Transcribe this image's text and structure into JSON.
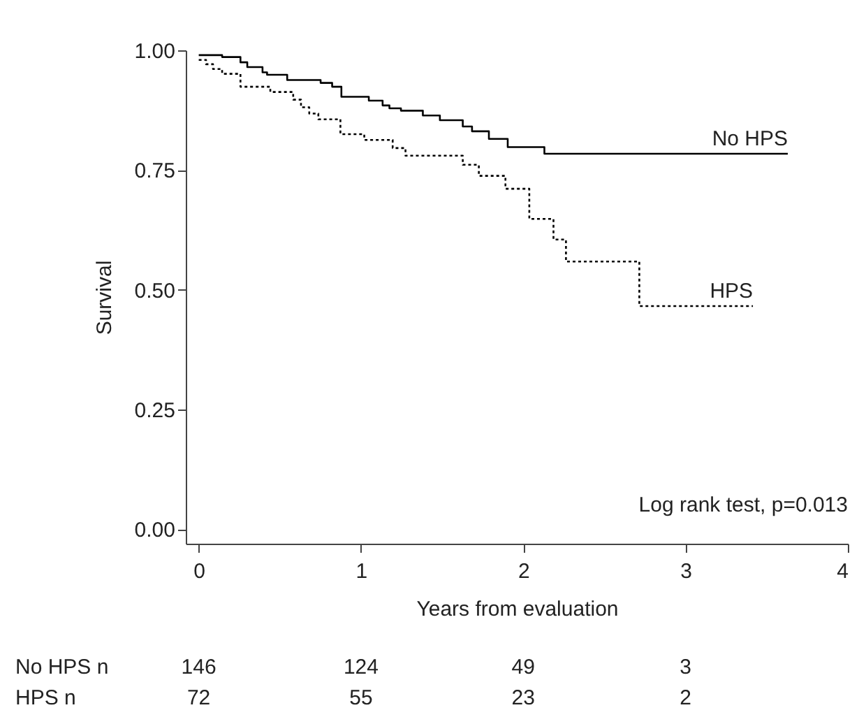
{
  "chart_data": {
    "type": "step",
    "xlabel": "Years from evaluation",
    "ylabel": "Survival",
    "xlim": [
      -0.08,
      4
    ],
    "xticks": [
      0,
      1,
      2,
      3,
      4
    ],
    "ylim": [
      -0.03,
      1
    ],
    "yticks": [
      {
        "value": 0,
        "label": "0.00"
      },
      {
        "value": 0.25,
        "label": "0.25"
      },
      {
        "value": 0.5,
        "label": "0.50"
      },
      {
        "value": 0.75,
        "label": "0.75"
      },
      {
        "value": 1,
        "label": "1.00"
      }
    ],
    "grid": false,
    "series": [
      {
        "name": "No HPS",
        "color": "#000000",
        "line_style": "solid",
        "x": [
          0,
          0.144,
          0.257,
          0.299,
          0.393,
          0.421,
          0.545,
          0.751,
          0.822,
          0.879,
          1.048,
          1.133,
          1.175,
          1.246,
          1.381,
          1.486,
          1.627,
          1.684,
          1.788,
          1.904,
          2.13,
          3.63
        ],
        "values": [
          0.99,
          0.986,
          0.975,
          0.965,
          0.954,
          0.949,
          0.938,
          0.932,
          0.924,
          0.903,
          0.895,
          0.885,
          0.879,
          0.874,
          0.864,
          0.854,
          0.841,
          0.831,
          0.815,
          0.798,
          0.784,
          0.784
        ]
      },
      {
        "name": "HPS",
        "color": "#000000",
        "line_style": "dotted",
        "x": [
          0,
          0.045,
          0.088,
          0.144,
          0.257,
          0.441,
          0.582,
          0.63,
          0.681,
          0.737,
          0.873,
          1.02,
          1.195,
          1.274,
          1.627,
          1.726,
          1.89,
          2.037,
          2.186,
          2.263,
          2.715,
          3.415
        ],
        "values": [
          0.98,
          0.971,
          0.961,
          0.951,
          0.924,
          0.913,
          0.897,
          0.881,
          0.868,
          0.856,
          0.825,
          0.813,
          0.796,
          0.78,
          0.761,
          0.738,
          0.711,
          0.648,
          0.605,
          0.559,
          0.466,
          0.466
        ]
      }
    ],
    "annotations": [
      "Log rank test, p=0.013",
      "No HPS n",
      "146",
      "124",
      "49",
      "3",
      "HPS n",
      "72",
      "55",
      "23",
      "2"
    ]
  }
}
